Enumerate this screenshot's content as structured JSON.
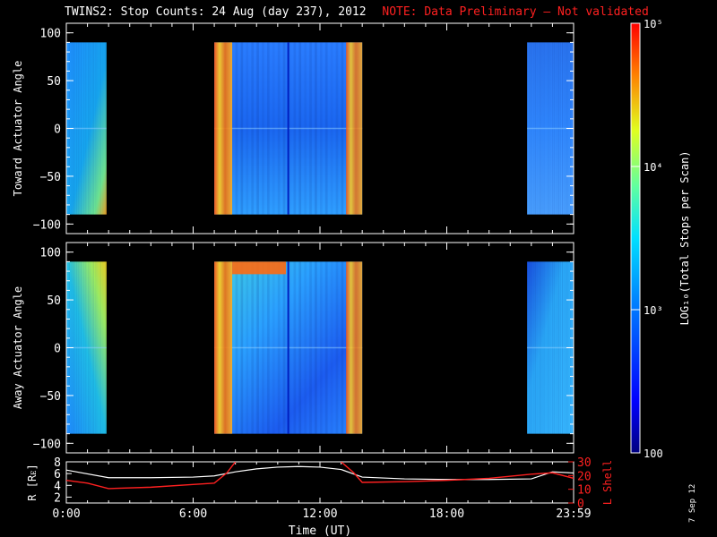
{
  "header": {
    "title": "TWINS2: Stop Counts: 24 Aug (day 237), 2012",
    "note": "NOTE: Data Preliminary – Not validated",
    "note_color": "#ff2020"
  },
  "footer": {
    "date_stamp": "7 Sep 12"
  },
  "chart_data": [
    {
      "type": "heatmap",
      "ylabel": "Toward Actuator Angle",
      "ylim": [
        -110,
        110
      ],
      "yticks": [
        "100",
        "50",
        "0",
        "−50",
        "−100"
      ],
      "ytick_values": [
        100,
        50,
        0,
        -50,
        -100
      ],
      "xlim": [
        0,
        24
      ],
      "x_ticks": [
        0,
        6,
        12,
        18,
        24
      ],
      "y_extent": [
        -90,
        90
      ],
      "data_intervals_ut_hours": [
        [
          0.0,
          1.9
        ],
        [
          7.0,
          14.0
        ],
        [
          21.8,
          24.0
        ]
      ],
      "color_scale": "log10 total stops per scan",
      "scale_min": 100,
      "scale_max": 100000
    },
    {
      "type": "heatmap",
      "ylabel": "Away Actuator Angle",
      "ylim": [
        -110,
        110
      ],
      "yticks": [
        "100",
        "50",
        "0",
        "−50",
        "−100"
      ],
      "ytick_values": [
        100,
        50,
        0,
        -50,
        -100
      ],
      "xlim": [
        0,
        24
      ],
      "x_ticks": [
        0,
        6,
        12,
        18,
        24
      ],
      "y_extent": [
        -90,
        90
      ],
      "data_intervals_ut_hours": [
        [
          0.0,
          1.9
        ],
        [
          7.0,
          14.0
        ],
        [
          21.8,
          24.0
        ]
      ],
      "color_scale": "log10 total stops per scan",
      "scale_min": 100,
      "scale_max": 100000
    },
    {
      "type": "line",
      "ylabel": "R [Rᴇ]",
      "ylabel2": "L Shell",
      "ylim": [
        1,
        8
      ],
      "ylim2": [
        0,
        30
      ],
      "yticks": [
        "8",
        "6",
        "4",
        "2"
      ],
      "ytick_values": [
        8,
        6,
        4,
        2
      ],
      "yticks2": [
        "30",
        "20",
        "10",
        "0"
      ],
      "ytick2_values": [
        30,
        20,
        10,
        0
      ],
      "xlabel": "Time (UT)",
      "x_tick_labels": [
        "0:00",
        "6:00",
        "12:00",
        "18:00",
        "23:59"
      ],
      "x_ticks": [
        0,
        6,
        12,
        18,
        24
      ],
      "series": [
        {
          "color": "#ffffff",
          "x": [
            0,
            2,
            4,
            6,
            7,
            8,
            9,
            10,
            11,
            12,
            13,
            14,
            16,
            18,
            20,
            22,
            23,
            24
          ],
          "y": [
            6.6,
            5.3,
            5.3,
            5.4,
            5.6,
            6.3,
            6.8,
            7.1,
            7.2,
            7.1,
            6.7,
            5.4,
            5.1,
            5.0,
            5.0,
            5.1,
            6.3,
            6.1
          ]
        },
        {
          "color": "#ff2020",
          "axis": "right",
          "segments": [
            {
              "x": [
                0,
                1,
                2,
                4,
                6,
                7,
                7.6,
                8.0
              ],
              "y": [
                16.5,
                14.5,
                10.5,
                11.5,
                13.5,
                14.5,
                22,
                30
              ]
            },
            {
              "x": [
                13.0,
                13.6,
                14.0,
                16,
                18,
                20,
                22,
                23,
                24
              ],
              "y": [
                30,
                22,
                15,
                15.5,
                16.5,
                18,
                21,
                22,
                18
              ]
            }
          ]
        }
      ]
    }
  ],
  "colorbar": {
    "label": "LOG₁₀(Total Stops per Scan)",
    "ticks": [
      "10⁵",
      "10⁴",
      "10³",
      "100"
    ],
    "tick_values": [
      100000,
      10000,
      1000,
      100
    ]
  }
}
